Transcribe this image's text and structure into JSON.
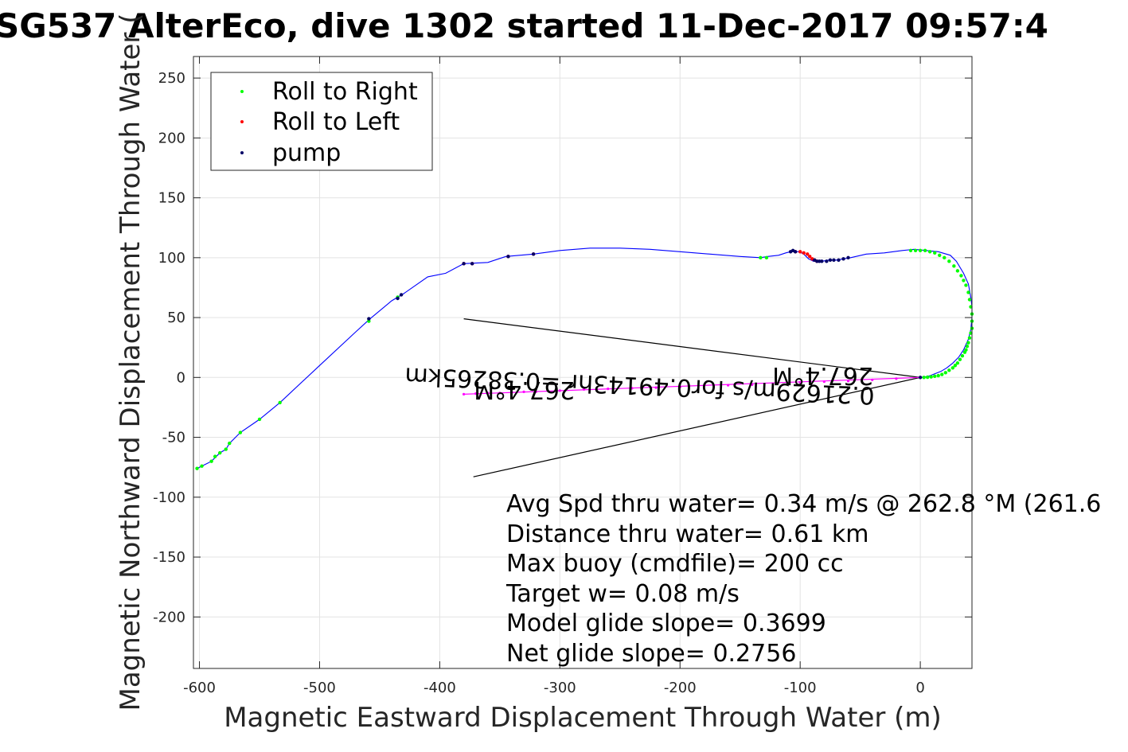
{
  "chart_data": {
    "type": "line",
    "title": "SG537 AlterEco, dive 1302 started 11-Dec-2017 09:57:4",
    "xlabel": "Magnetic Eastward Displacement Through Water (m)",
    "ylabel": "Magnetic Northward Displacement Through Water (",
    "xlim": [
      -605,
      43
    ],
    "ylim": [
      -243,
      268
    ],
    "xticks": [
      -600,
      -500,
      -400,
      -300,
      -200,
      -100,
      0
    ],
    "yticks": [
      250,
      200,
      150,
      100,
      50,
      0,
      -50,
      -100,
      -150,
      -200
    ],
    "xtick_labels": [
      "-600",
      "-500",
      "-400",
      "-300",
      "-200",
      "-100",
      "0"
    ],
    "ytick_labels": [
      "250",
      "200",
      "150",
      "100",
      "50",
      "0",
      "-50",
      "-100",
      "-150",
      "-200"
    ],
    "grid": true,
    "legend_position": "top-left",
    "legend": [
      {
        "label": "Roll to Right",
        "color": "#00ff00"
      },
      {
        "label": "Roll to Left",
        "color": "#ff0000"
      },
      {
        "label": "pump",
        "color": "#000066"
      }
    ],
    "track": {
      "color": "#0000ff",
      "x": [
        -602,
        -598,
        -590,
        -583,
        -578,
        -575,
        -566,
        -550,
        -533,
        -500,
        -470,
        -458,
        -440,
        -430,
        -410,
        -395,
        -380,
        -360,
        -345,
        -322,
        -300,
        -275,
        -250,
        -225,
        -200,
        -175,
        -150,
        -133,
        -127,
        -118,
        -112,
        -108,
        -104,
        -101,
        -99,
        -97,
        -95,
        -93,
        -91,
        -89,
        -86,
        -82,
        -76,
        -70,
        -64,
        -58,
        -45,
        -30,
        -15,
        -5,
        5,
        15,
        25,
        30,
        36,
        40,
        42,
        43,
        43,
        42,
        40,
        36,
        32,
        27,
        22,
        17,
        12,
        8,
        4,
        0
      ],
      "y": [
        -76,
        -74,
        -70,
        -63,
        -60,
        -55,
        -46,
        -35,
        -21,
        10,
        38,
        49,
        64,
        70,
        84,
        87,
        95,
        96,
        101,
        103,
        106,
        108,
        108,
        107,
        105,
        103,
        101,
        100,
        101,
        102,
        104,
        105,
        105,
        105,
        104,
        103,
        101,
        99,
        98,
        97,
        97,
        97,
        98,
        98,
        99,
        100,
        103,
        104,
        106,
        107,
        106,
        105,
        102,
        97,
        87,
        78,
        67,
        59,
        50,
        40,
        32,
        23,
        17,
        12,
        8,
        5,
        3,
        1.5,
        0.5,
        0
      ]
    },
    "markers": {
      "roll_right": {
        "color": "#00ff00",
        "x": [
          -602,
          -598,
          -590,
          -587,
          -583,
          -578,
          -575,
          -566,
          -550,
          -533,
          -459,
          -435,
          -133,
          -128,
          -8,
          -4,
          0,
          4,
          8,
          12,
          16,
          20,
          24,
          28,
          31,
          34,
          36,
          38,
          40,
          41,
          42,
          43,
          43,
          43,
          42,
          41,
          40,
          39,
          38,
          37,
          35,
          33,
          31,
          29,
          27,
          24,
          21,
          18,
          15,
          12,
          9,
          6,
          3
        ],
        "y": [
          -76,
          -74,
          -70,
          -66,
          -63,
          -60,
          -55,
          -46,
          -35,
          -21,
          47,
          67,
          100,
          100,
          106,
          106,
          106,
          106,
          105,
          104,
          102,
          100,
          97,
          93,
          89,
          85,
          81,
          77,
          71,
          65,
          59,
          53,
          47,
          41,
          37,
          33,
          29,
          26,
          23,
          21,
          18,
          15,
          12,
          10,
          8,
          6,
          4,
          2.5,
          1.5,
          1,
          0.5,
          0.2,
          0
        ]
      },
      "roll_left": {
        "color": "#ff0000",
        "x": [
          -380,
          -373,
          -343,
          -322,
          -104,
          -100,
          -97,
          -94,
          -92,
          -90,
          -88,
          -86
        ],
        "y": [
          95,
          95,
          101,
          103,
          105,
          105,
          104,
          103,
          101,
          99,
          98,
          97
        ],
        "dive_stub_x": [
          -380,
          -370,
          -360,
          -350,
          -340,
          -330,
          -320,
          -300,
          -280,
          -260,
          -240,
          -220,
          -200,
          -180,
          -160,
          -140,
          -120,
          -100,
          -80,
          -60,
          -40,
          -20,
          0
        ],
        "dive_stub_y": [
          -14,
          -13.5,
          -13,
          -13,
          -12.5,
          -12,
          -12,
          -11,
          -10,
          -9.5,
          -9,
          -8.5,
          -8,
          -7,
          -6.5,
          -6,
          -5,
          -4,
          -3.5,
          -3,
          -2,
          -1,
          0
        ]
      },
      "pump": {
        "color": "#000066",
        "x": [
          -459,
          -435,
          -432,
          -380,
          -373,
          -343,
          -322,
          -108,
          -106,
          -104,
          -88,
          -86,
          -84,
          -82,
          -78,
          -75,
          -72,
          -68,
          -64,
          -60,
          0
        ],
        "y": [
          49,
          66,
          69,
          95,
          95,
          101,
          103,
          105,
          106,
          105,
          98,
          97,
          97,
          97,
          97,
          98,
          98,
          98,
          99,
          100,
          0
        ]
      }
    },
    "annotation_lines": [
      {
        "x": [
          -380,
          0
        ],
        "y": [
          49,
          0
        ],
        "color": "#000000"
      },
      {
        "x": [
          -372,
          0
        ],
        "y": [
          -83,
          0
        ],
        "color": "#000000"
      }
    ],
    "current_line": {
      "x": [
        -380,
        0
      ],
      "y": [
        -14,
        0
      ],
      "color": "#ff00ff"
    },
    "annotations": [
      {
        "text": "267.4°M",
        "x": -380,
        "y": -14,
        "rotated": true
      },
      {
        "text": "0.21629m/s for0.49143hr =0.38265km",
        "x": -380,
        "y": -14,
        "rotated": true
      },
      {
        "text": "267.4°M",
        "x": 0,
        "y": 0,
        "rotated": true
      }
    ],
    "stats": [
      "Avg Spd thru water=  0.34 m/s @ 262.8 °M (261.6",
      "Distance thru water=  0.61 km",
      "Max buoy (cmdfile)= 200 cc",
      "Target w= 0.08 m/s",
      "Model glide slope= 0.3699",
      "Net glide slope= 0.2756"
    ]
  }
}
